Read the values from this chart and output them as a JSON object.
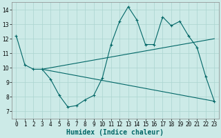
{
  "background_color": "#cceae7",
  "line_color": "#006666",
  "grid_color": "#aad4d0",
  "xlabel": "Humidex (Indice chaleur)",
  "xlabel_fontsize": 7,
  "xlim": [
    -0.5,
    23.5
  ],
  "ylim": [
    6.5,
    14.5
  ],
  "yticks": [
    7,
    8,
    9,
    10,
    11,
    12,
    13,
    14
  ],
  "xticks": [
    0,
    1,
    2,
    3,
    4,
    5,
    6,
    7,
    8,
    9,
    10,
    11,
    12,
    13,
    14,
    15,
    16,
    17,
    18,
    19,
    20,
    21,
    22,
    23
  ],
  "tick_fontsize": 5.5,
  "line1": {
    "x": [
      0,
      1,
      2,
      3,
      4,
      5,
      6,
      7,
      8,
      9,
      10,
      11,
      12,
      13,
      14,
      15,
      16,
      17,
      18,
      19,
      20,
      21,
      22,
      23
    ],
    "y": [
      12.2,
      10.2,
      9.9,
      9.9,
      9.2,
      8.1,
      7.3,
      7.4,
      7.8,
      8.1,
      9.3,
      11.6,
      13.2,
      14.2,
      13.3,
      11.6,
      11.6,
      13.5,
      12.9,
      13.2,
      12.2,
      11.4,
      9.4,
      7.7
    ]
  },
  "line2": {
    "x": [
      3,
      23
    ],
    "y": [
      9.9,
      12.0
    ]
  },
  "line3": {
    "x": [
      3,
      23
    ],
    "y": [
      9.9,
      7.7
    ]
  }
}
